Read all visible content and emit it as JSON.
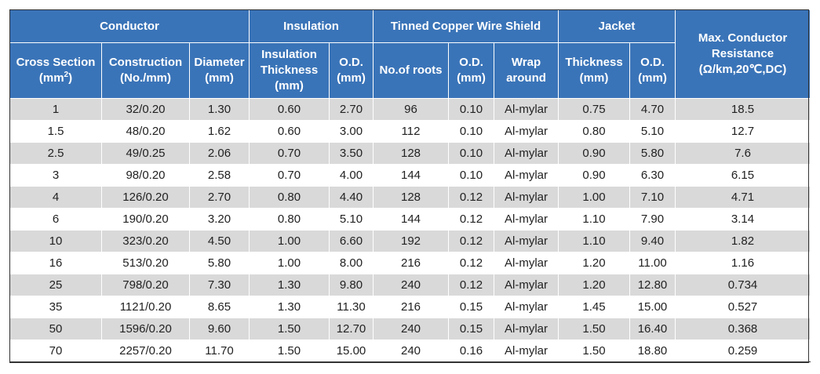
{
  "header": {
    "group_conductor": "Conductor",
    "group_insulation": "Insulation",
    "group_shield": "Tinned Copper Wire Shield",
    "group_jacket": "Jacket",
    "max_resistance_line1": "Max. Conductor",
    "max_resistance_line2": "Resistance",
    "max_resistance_line3": "(Ω/km,20℃,DC)",
    "cross_section_line1": "Cross Section",
    "cross_section_line2_pre": "(mm",
    "cross_section_sup": "2",
    "cross_section_line2_post": ")",
    "construction_line1": "Construction",
    "construction_line2": "(No./mm)",
    "diameter_line1": "Diameter",
    "diameter_line2": "(mm)",
    "ins_thickness_line1": "Insulation",
    "ins_thickness_line2": "Thickness",
    "ins_thickness_line3": "(mm)",
    "ins_od_line1": "O.D.",
    "ins_od_line2": "(mm)",
    "roots": "No.of roots",
    "shield_od_line1": "O.D.",
    "shield_od_line2": "(mm)",
    "wrap_line1": "Wrap",
    "wrap_line2": "around",
    "jacket_thickness_line1": "Thickness",
    "jacket_thickness_line2": "(mm)",
    "jacket_od_line1": "O.D.",
    "jacket_od_line2": "(mm)"
  },
  "rows": [
    [
      "1",
      "32/0.20",
      "1.30",
      "0.60",
      "2.70",
      "96",
      "0.10",
      "Al-mylar",
      "0.75",
      "4.70",
      "18.5"
    ],
    [
      "1.5",
      "48/0.20",
      "1.62",
      "0.60",
      "3.00",
      "112",
      "0.10",
      "Al-mylar",
      "0.80",
      "5.10",
      "12.7"
    ],
    [
      "2.5",
      "49/0.25",
      "2.06",
      "0.70",
      "3.50",
      "128",
      "0.10",
      "Al-mylar",
      "0.90",
      "5.80",
      "7.6"
    ],
    [
      "3",
      "98/0.20",
      "2.58",
      "0.70",
      "4.00",
      "144",
      "0.10",
      "Al-mylar",
      "0.90",
      "6.30",
      "6.15"
    ],
    [
      "4",
      "126/0.20",
      "2.70",
      "0.80",
      "4.40",
      "128",
      "0.12",
      "Al-mylar",
      "1.00",
      "7.10",
      "4.71"
    ],
    [
      "6",
      "190/0.20",
      "3.20",
      "0.80",
      "5.10",
      "144",
      "0.12",
      "Al-mylar",
      "1.10",
      "7.90",
      "3.14"
    ],
    [
      "10",
      "323/0.20",
      "4.50",
      "1.00",
      "6.60",
      "192",
      "0.12",
      "Al-mylar",
      "1.10",
      "9.40",
      "1.82"
    ],
    [
      "16",
      "513/0.20",
      "5.80",
      "1.00",
      "8.00",
      "216",
      "0.12",
      "Al-mylar",
      "1.20",
      "11.00",
      "1.16"
    ],
    [
      "25",
      "798/0.20",
      "7.30",
      "1.30",
      "9.80",
      "240",
      "0.12",
      "Al-mylar",
      "1.20",
      "12.80",
      "0.734"
    ],
    [
      "35",
      "1121/0.20",
      "8.65",
      "1.30",
      "11.30",
      "216",
      "0.15",
      "Al-mylar",
      "1.45",
      "15.00",
      "0.527"
    ],
    [
      "50",
      "1596/0.20",
      "9.60",
      "1.50",
      "12.70",
      "240",
      "0.15",
      "Al-mylar",
      "1.50",
      "16.40",
      "0.368"
    ],
    [
      "70",
      "2257/0.20",
      "11.70",
      "1.50",
      "15.00",
      "240",
      "0.16",
      "Al-mylar",
      "1.50",
      "18.80",
      "0.259"
    ]
  ],
  "colors": {
    "header_bg": "#3a74b8",
    "header_text": "#ffffff",
    "row_alt": "#d9d9d9",
    "row": "#ffffff"
  }
}
